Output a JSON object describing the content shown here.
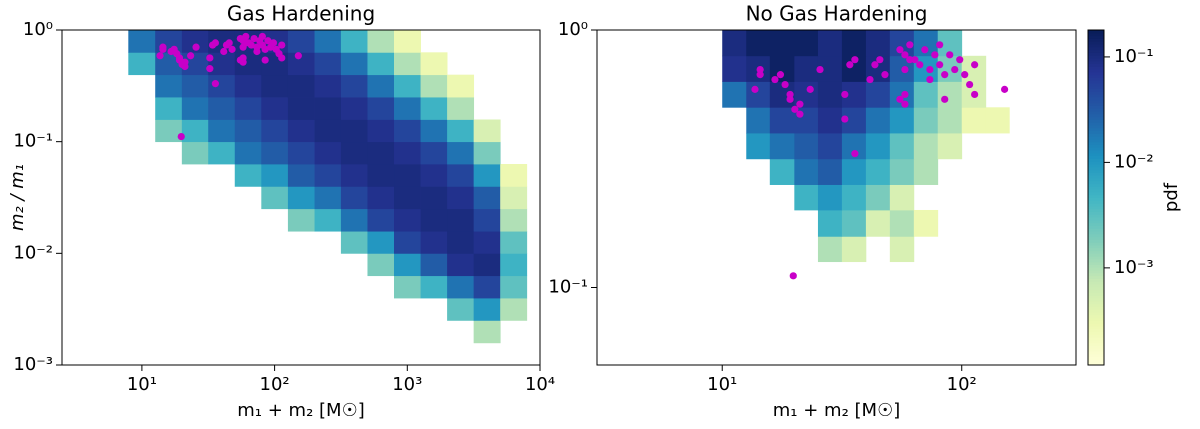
{
  "chart_data": [
    {
      "type": "heatmap",
      "title": "Gas Hardening",
      "xlabel": "m₁ + m₂ [M☉]",
      "ylabel": "m₂ / m₁",
      "xscale": "log",
      "yscale": "log",
      "xlim": [
        2.5,
        10000
      ],
      "ylim": [
        0.001,
        1
      ],
      "xticks": [
        {
          "value": 10,
          "label": "10¹"
        },
        {
          "value": 100,
          "label": "10²"
        },
        {
          "value": 1000,
          "label": "10³"
        },
        {
          "value": 10000,
          "label": "10⁴"
        }
      ],
      "yticks": [
        {
          "value": 0.001,
          "label": "10⁻³"
        },
        {
          "value": 0.01,
          "label": "10⁻²"
        },
        {
          "value": 0.1,
          "label": "10⁻¹"
        },
        {
          "value": 1,
          "label": "10⁰"
        }
      ],
      "x_bins": [
        7.9,
        12.6,
        20,
        31.6,
        50.1,
        79.4,
        126,
        200,
        316,
        501,
        794,
        1259,
        1995,
        3162,
        5012,
        7943
      ],
      "y_bins": [
        0.001,
        0.00158,
        0.00251,
        0.00398,
        0.00631,
        0.01,
        0.0158,
        0.0251,
        0.0398,
        0.0631,
        0.1,
        0.158,
        0.251,
        0.398,
        0.631,
        1
      ],
      "z": [
        [
          null,
          null,
          null,
          null,
          null,
          null,
          null,
          null,
          null,
          null,
          null,
          null,
          null,
          null,
          null
        ],
        [
          null,
          null,
          null,
          null,
          null,
          null,
          null,
          null,
          null,
          null,
          null,
          null,
          null,
          0.001,
          null
        ],
        [
          null,
          null,
          null,
          null,
          null,
          null,
          null,
          null,
          null,
          null,
          null,
          null,
          0.003,
          0.01,
          0.001
        ],
        [
          null,
          null,
          null,
          null,
          null,
          null,
          null,
          null,
          null,
          null,
          0.002,
          0.005,
          0.02,
          0.05,
          0.003
        ],
        [
          null,
          null,
          null,
          null,
          null,
          null,
          null,
          null,
          null,
          0.002,
          0.01,
          0.03,
          0.08,
          0.1,
          0.005
        ],
        [
          null,
          null,
          null,
          null,
          null,
          null,
          null,
          null,
          0.003,
          0.01,
          0.05,
          0.08,
          0.1,
          0.08,
          0.003
        ],
        [
          null,
          null,
          null,
          null,
          null,
          null,
          0.002,
          0.005,
          0.02,
          0.05,
          0.08,
          0.1,
          0.1,
          0.05,
          0.001
        ],
        [
          null,
          null,
          null,
          null,
          null,
          0.003,
          0.01,
          0.02,
          0.05,
          0.08,
          0.1,
          0.1,
          0.08,
          0.03,
          0.0005
        ],
        [
          null,
          null,
          null,
          null,
          0.005,
          0.01,
          0.03,
          0.05,
          0.08,
          0.1,
          0.1,
          0.08,
          0.05,
          0.01,
          0.0003
        ],
        [
          null,
          null,
          0.002,
          0.005,
          0.02,
          0.03,
          0.05,
          0.08,
          0.1,
          0.1,
          0.08,
          0.05,
          0.02,
          0.002,
          null
        ],
        [
          null,
          0.002,
          0.005,
          0.02,
          0.03,
          0.05,
          0.08,
          0.1,
          0.1,
          0.08,
          0.05,
          0.02,
          0.005,
          0.0005,
          null
        ],
        [
          null,
          0.005,
          0.02,
          0.03,
          0.05,
          0.08,
          0.1,
          0.1,
          0.08,
          0.05,
          0.02,
          0.005,
          0.001,
          null,
          null
        ],
        [
          null,
          0.02,
          0.03,
          0.05,
          0.08,
          0.1,
          0.1,
          0.08,
          0.05,
          0.02,
          0.005,
          0.001,
          0.0003,
          null,
          null
        ],
        [
          0.005,
          0.03,
          0.05,
          0.08,
          0.1,
          0.1,
          0.08,
          0.05,
          0.02,
          0.005,
          0.001,
          0.0003,
          null,
          null,
          null
        ],
        [
          0.02,
          0.05,
          0.08,
          0.1,
          0.1,
          0.08,
          0.05,
          0.02,
          0.005,
          0.001,
          0.0003,
          null,
          null,
          null,
          null
        ]
      ],
      "clim": [
        0.00012,
        0.18
      ],
      "colormap": [
        "#ffffd9",
        "#edf8b1",
        "#c7e9b4",
        "#7fcdbb",
        "#41b6c4",
        "#1d91c0",
        "#225ea8",
        "#253494",
        "#081d58"
      ],
      "scatter": {
        "color": "#c800c8",
        "x": [
          13.7,
          14.4,
          14.4,
          16.6,
          17.5,
          18.3,
          19.2,
          19.2,
          20.1,
          21.1,
          21.1,
          23.3,
          25.6,
          32.5,
          34.1,
          35.8,
          32.5,
          35.8,
          41.4,
          43.4,
          45.5,
          47.8,
          55.2,
          57.9,
          55.2,
          57.9,
          57.9,
          60.7,
          60.7,
          63.7,
          66.8,
          70.1,
          73.6,
          73.6,
          77.2,
          80.9,
          80.9,
          84.9,
          84.9,
          89.1,
          93.5,
          98.1,
          102.9,
          107.9,
          113.2,
          113.2,
          151,
          19.8,
          57.9
        ],
        "y": [
          0.588,
          0.702,
          0.671,
          0.642,
          0.671,
          0.614,
          0.538,
          0.562,
          0.492,
          0.515,
          0.471,
          0.588,
          0.702,
          0.562,
          0.733,
          0.767,
          0.451,
          0.331,
          0.642,
          0.733,
          0.767,
          0.671,
          0.838,
          0.801,
          0.538,
          0.562,
          0.702,
          0.876,
          0.767,
          0.767,
          0.733,
          0.838,
          0.702,
          0.642,
          0.801,
          0.733,
          0.876,
          0.671,
          0.538,
          0.801,
          0.702,
          0.767,
          0.671,
          0.614,
          0.562,
          0.733,
          0.588,
          0.111,
          0.515
        ]
      }
    },
    {
      "type": "heatmap",
      "title": "No Gas Hardening",
      "xlabel": "m₁ + m₂ [M☉]",
      "xscale": "log",
      "yscale": "log",
      "xlim": [
        3,
        300
      ],
      "ylim": [
        0.05,
        1
      ],
      "xticks": [
        {
          "value": 10,
          "label": "10¹"
        },
        {
          "value": 100,
          "label": "10²"
        }
      ],
      "yticks": [
        {
          "value": 0.1,
          "label": "10⁻¹"
        },
        {
          "value": 1,
          "label": "10⁰"
        }
      ],
      "x_bins": [
        10,
        12.6,
        15.8,
        20,
        25.1,
        31.6,
        39.8,
        50.1,
        63.1,
        79.4,
        100,
        126,
        158
      ],
      "y_bins": [
        0.126,
        0.158,
        0.2,
        0.251,
        0.316,
        0.398,
        0.501,
        0.631,
        0.794,
        1
      ],
      "z": [
        [
          null,
          null,
          null,
          null,
          0.001,
          0.0005,
          null,
          0.0005,
          null,
          null,
          null,
          null
        ],
        [
          null,
          null,
          null,
          null,
          0.005,
          0.003,
          0.0005,
          0.001,
          0.0003,
          null,
          null,
          null
        ],
        [
          null,
          null,
          null,
          0.005,
          0.01,
          0.005,
          0.002,
          0.0005,
          null,
          null,
          null,
          null
        ],
        [
          null,
          null,
          0.005,
          0.02,
          0.03,
          0.01,
          0.005,
          0.002,
          0.001,
          null,
          null,
          null
        ],
        [
          null,
          0.01,
          0.02,
          0.03,
          0.05,
          0.02,
          0.01,
          0.003,
          0.001,
          0.0005,
          null,
          null
        ],
        [
          null,
          0.02,
          0.05,
          0.05,
          0.08,
          0.05,
          0.02,
          0.01,
          0.002,
          0.001,
          0.0003,
          0.0003
        ],
        [
          0.02,
          0.05,
          0.1,
          0.08,
          0.1,
          0.08,
          0.05,
          0.02,
          0.003,
          0.001,
          0.0005,
          null
        ],
        [
          0.08,
          0.1,
          0.15,
          0.1,
          0.1,
          0.15,
          0.1,
          0.03,
          0.01,
          0.002,
          0.0005,
          null
        ],
        [
          0.1,
          0.15,
          0.15,
          0.15,
          0.1,
          0.15,
          0.1,
          0.05,
          0.02,
          0.003,
          null,
          null
        ]
      ],
      "clim": [
        0.00012,
        0.18
      ],
      "colormap": [
        "#ffffd9",
        "#edf8b1",
        "#c7e9b4",
        "#7fcdbb",
        "#41b6c4",
        "#1d91c0",
        "#225ea8",
        "#253494",
        "#081d58"
      ],
      "colorbar": {
        "label": "pdf",
        "ticks": [
          {
            "value": 0.001,
            "label": "10⁻³"
          },
          {
            "value": 0.01,
            "label": "10⁻²"
          },
          {
            "value": 0.1,
            "label": "10⁻¹"
          }
        ]
      },
      "scatter": {
        "color": "#c800c8",
        "x": [
          13.7,
          14.4,
          14.4,
          16.6,
          17.5,
          18.3,
          19.2,
          19.2,
          20.1,
          21.1,
          21.1,
          23.3,
          25.6,
          32.5,
          34.1,
          35.8,
          32.5,
          35.8,
          41.4,
          43.4,
          45.5,
          47.8,
          55.2,
          57.9,
          55.2,
          57.9,
          57.9,
          60.7,
          60.7,
          63.7,
          66.8,
          70.1,
          73.6,
          73.6,
          77.2,
          80.9,
          80.9,
          84.9,
          84.9,
          89.1,
          93.5,
          98.1,
          102.9,
          107.9,
          113.2,
          113.2,
          151,
          19.8,
          57.9
        ],
        "y": [
          0.588,
          0.702,
          0.671,
          0.642,
          0.671,
          0.614,
          0.538,
          0.562,
          0.492,
          0.515,
          0.471,
          0.588,
          0.702,
          0.562,
          0.733,
          0.767,
          0.451,
          0.331,
          0.642,
          0.733,
          0.767,
          0.671,
          0.838,
          0.801,
          0.538,
          0.562,
          0.702,
          0.876,
          0.767,
          0.767,
          0.733,
          0.838,
          0.702,
          0.642,
          0.801,
          0.733,
          0.876,
          0.671,
          0.538,
          0.801,
          0.702,
          0.767,
          0.671,
          0.614,
          0.562,
          0.733,
          0.588,
          0.111,
          0.515
        ]
      }
    }
  ]
}
